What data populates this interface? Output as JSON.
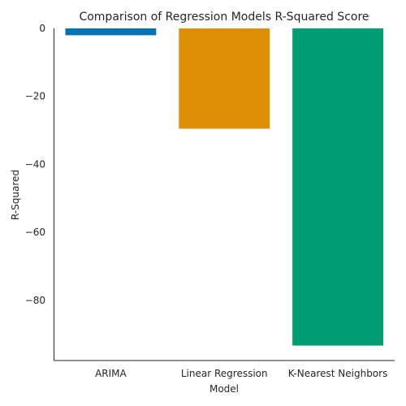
{
  "chart_data": {
    "type": "bar",
    "title": "Comparison of Regression Models R-Squared Score",
    "xlabel": "Model",
    "ylabel": "R-Squared",
    "categories": [
      "ARIMA",
      "Linear Regression",
      "K-Nearest Neighbors"
    ],
    "values": [
      -2,
      -29.5,
      -93.3
    ],
    "colors": [
      "#0173b2",
      "#de8f05",
      "#029e73"
    ],
    "ylim": [
      -97.7,
      0
    ],
    "yticks": [
      0,
      -20,
      -40,
      -60,
      -80
    ],
    "ytick_labels": [
      "0",
      "−20",
      "−40",
      "−60",
      "−80"
    ],
    "grid": false,
    "legend": "none"
  }
}
